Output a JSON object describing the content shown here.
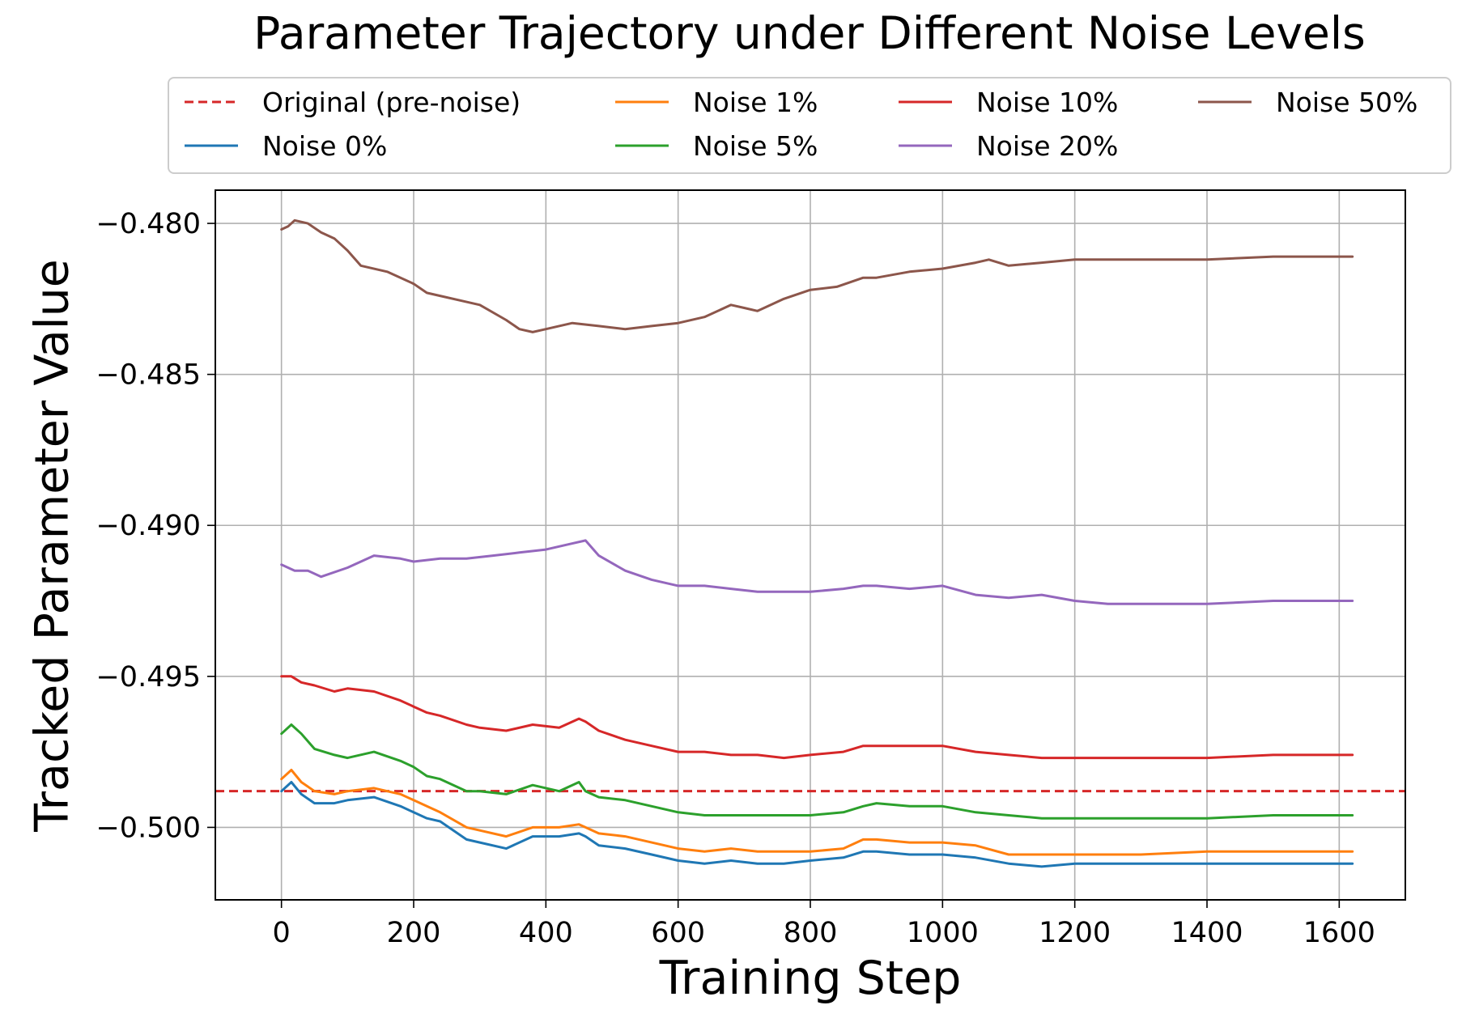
{
  "chart_data": {
    "type": "line",
    "title": "Parameter Trajectory under Different Noise Levels",
    "xlabel": "Training Step",
    "ylabel": "Tracked Parameter Value",
    "xlim": [
      -100,
      1700
    ],
    "ylim": [
      -0.5024,
      -0.4789
    ],
    "grid": true,
    "legend": {
      "placement": "top",
      "columns": 4
    },
    "x_ticks": [
      0,
      200,
      400,
      600,
      800,
      1000,
      1200,
      1400,
      1600
    ],
    "x_tick_labels": [
      "0",
      "200",
      "400",
      "600",
      "800",
      "1000",
      "1200",
      "1400",
      "1600"
    ],
    "y_ticks": [
      -0.48,
      -0.485,
      -0.49,
      -0.495,
      -0.5
    ],
    "y_tick_labels": [
      "−0.480",
      "−0.485",
      "−0.490",
      "−0.495",
      "−0.500"
    ],
    "reference_line": {
      "name": "Original (pre-noise)",
      "y": -0.4988,
      "color": "#d62728",
      "style": "dashed"
    },
    "series": [
      {
        "name": "Noise 0%",
        "color": "#1f77b4",
        "x": [
          0,
          15,
          30,
          50,
          80,
          100,
          140,
          180,
          200,
          220,
          240,
          280,
          300,
          340,
          380,
          420,
          450,
          460,
          480,
          520,
          560,
          600,
          640,
          680,
          720,
          760,
          800,
          850,
          880,
          900,
          950,
          1000,
          1050,
          1100,
          1150,
          1200,
          1300,
          1400,
          1500,
          1620
        ],
        "values": [
          -0.4988,
          -0.4985,
          -0.4989,
          -0.4992,
          -0.4992,
          -0.4991,
          -0.499,
          -0.4993,
          -0.4995,
          -0.4997,
          -0.4998,
          -0.5004,
          -0.5005,
          -0.5007,
          -0.5003,
          -0.5003,
          -0.5002,
          -0.5003,
          -0.5006,
          -0.5007,
          -0.5009,
          -0.5011,
          -0.5012,
          -0.5011,
          -0.5012,
          -0.5012,
          -0.5011,
          -0.501,
          -0.5008,
          -0.5008,
          -0.5009,
          -0.5009,
          -0.501,
          -0.5012,
          -0.5013,
          -0.5012,
          -0.5012,
          -0.5012,
          -0.5012,
          -0.5012
        ]
      },
      {
        "name": "Noise 1%",
        "color": "#ff7f0e",
        "x": [
          0,
          15,
          30,
          50,
          80,
          100,
          140,
          180,
          200,
          220,
          240,
          280,
          300,
          340,
          380,
          420,
          450,
          460,
          480,
          520,
          560,
          600,
          640,
          680,
          720,
          760,
          800,
          850,
          880,
          900,
          950,
          1000,
          1050,
          1100,
          1150,
          1200,
          1300,
          1400,
          1500,
          1620
        ],
        "values": [
          -0.4984,
          -0.4981,
          -0.4985,
          -0.4988,
          -0.4989,
          -0.4988,
          -0.4987,
          -0.4989,
          -0.4991,
          -0.4993,
          -0.4995,
          -0.5,
          -0.5001,
          -0.5003,
          -0.5,
          -0.5,
          -0.4999,
          -0.5,
          -0.5002,
          -0.5003,
          -0.5005,
          -0.5007,
          -0.5008,
          -0.5007,
          -0.5008,
          -0.5008,
          -0.5008,
          -0.5007,
          -0.5004,
          -0.5004,
          -0.5005,
          -0.5005,
          -0.5006,
          -0.5009,
          -0.5009,
          -0.5009,
          -0.5009,
          -0.5008,
          -0.5008,
          -0.5008
        ]
      },
      {
        "name": "Noise 5%",
        "color": "#2ca02c",
        "x": [
          0,
          15,
          30,
          50,
          80,
          100,
          140,
          180,
          200,
          220,
          240,
          280,
          300,
          340,
          380,
          420,
          450,
          460,
          480,
          520,
          560,
          600,
          640,
          680,
          720,
          760,
          800,
          850,
          880,
          900,
          950,
          1000,
          1050,
          1100,
          1150,
          1200,
          1300,
          1400,
          1500,
          1620
        ],
        "values": [
          -0.4969,
          -0.4966,
          -0.4969,
          -0.4974,
          -0.4976,
          -0.4977,
          -0.4975,
          -0.4978,
          -0.498,
          -0.4983,
          -0.4984,
          -0.4988,
          -0.4988,
          -0.4989,
          -0.4986,
          -0.4988,
          -0.4985,
          -0.4988,
          -0.499,
          -0.4991,
          -0.4993,
          -0.4995,
          -0.4996,
          -0.4996,
          -0.4996,
          -0.4996,
          -0.4996,
          -0.4995,
          -0.4993,
          -0.4992,
          -0.4993,
          -0.4993,
          -0.4995,
          -0.4996,
          -0.4997,
          -0.4997,
          -0.4997,
          -0.4997,
          -0.4996,
          -0.4996
        ]
      },
      {
        "name": "Noise 10%",
        "color": "#d62728",
        "x": [
          0,
          15,
          30,
          50,
          80,
          100,
          140,
          180,
          200,
          220,
          240,
          280,
          300,
          340,
          380,
          420,
          450,
          460,
          480,
          520,
          560,
          600,
          640,
          680,
          720,
          760,
          800,
          850,
          880,
          900,
          950,
          1000,
          1050,
          1100,
          1150,
          1200,
          1300,
          1400,
          1500,
          1620
        ],
        "values": [
          -0.495,
          -0.495,
          -0.4952,
          -0.4953,
          -0.4955,
          -0.4954,
          -0.4955,
          -0.4958,
          -0.496,
          -0.4962,
          -0.4963,
          -0.4966,
          -0.4967,
          -0.4968,
          -0.4966,
          -0.4967,
          -0.4964,
          -0.4965,
          -0.4968,
          -0.4971,
          -0.4973,
          -0.4975,
          -0.4975,
          -0.4976,
          -0.4976,
          -0.4977,
          -0.4976,
          -0.4975,
          -0.4973,
          -0.4973,
          -0.4973,
          -0.4973,
          -0.4975,
          -0.4976,
          -0.4977,
          -0.4977,
          -0.4977,
          -0.4977,
          -0.4976,
          -0.4976
        ]
      },
      {
        "name": "Noise 20%",
        "color": "#9467bd",
        "x": [
          0,
          20,
          40,
          60,
          100,
          140,
          180,
          200,
          240,
          280,
          320,
          360,
          400,
          440,
          460,
          480,
          520,
          560,
          600,
          640,
          680,
          720,
          760,
          800,
          850,
          880,
          900,
          950,
          1000,
          1050,
          1100,
          1150,
          1200,
          1250,
          1300,
          1400,
          1500,
          1620
        ],
        "values": [
          -0.4913,
          -0.4915,
          -0.4915,
          -0.4917,
          -0.4914,
          -0.491,
          -0.4911,
          -0.4912,
          -0.4911,
          -0.4911,
          -0.491,
          -0.4909,
          -0.4908,
          -0.4906,
          -0.4905,
          -0.491,
          -0.4915,
          -0.4918,
          -0.492,
          -0.492,
          -0.4921,
          -0.4922,
          -0.4922,
          -0.4922,
          -0.4921,
          -0.492,
          -0.492,
          -0.4921,
          -0.492,
          -0.4923,
          -0.4924,
          -0.4923,
          -0.4925,
          -0.4926,
          -0.4926,
          -0.4926,
          -0.4925,
          -0.4925
        ]
      },
      {
        "name": "Noise 50%",
        "color": "#8c564b",
        "x": [
          0,
          10,
          20,
          40,
          60,
          80,
          100,
          120,
          160,
          200,
          220,
          240,
          280,
          300,
          340,
          360,
          380,
          400,
          440,
          480,
          520,
          560,
          600,
          640,
          680,
          700,
          720,
          760,
          800,
          840,
          880,
          900,
          950,
          1000,
          1050,
          1070,
          1100,
          1150,
          1200,
          1300,
          1400,
          1500,
          1620
        ],
        "values": [
          -0.4802,
          -0.4801,
          -0.4799,
          -0.48,
          -0.4803,
          -0.4805,
          -0.4809,
          -0.4814,
          -0.4816,
          -0.482,
          -0.4823,
          -0.4824,
          -0.4826,
          -0.4827,
          -0.4832,
          -0.4835,
          -0.4836,
          -0.4835,
          -0.4833,
          -0.4834,
          -0.4835,
          -0.4834,
          -0.4833,
          -0.4831,
          -0.4827,
          -0.4828,
          -0.4829,
          -0.4825,
          -0.4822,
          -0.4821,
          -0.4818,
          -0.4818,
          -0.4816,
          -0.4815,
          -0.4813,
          -0.4812,
          -0.4814,
          -0.4813,
          -0.4812,
          -0.4812,
          -0.4812,
          -0.4811,
          -0.4811
        ]
      }
    ]
  }
}
